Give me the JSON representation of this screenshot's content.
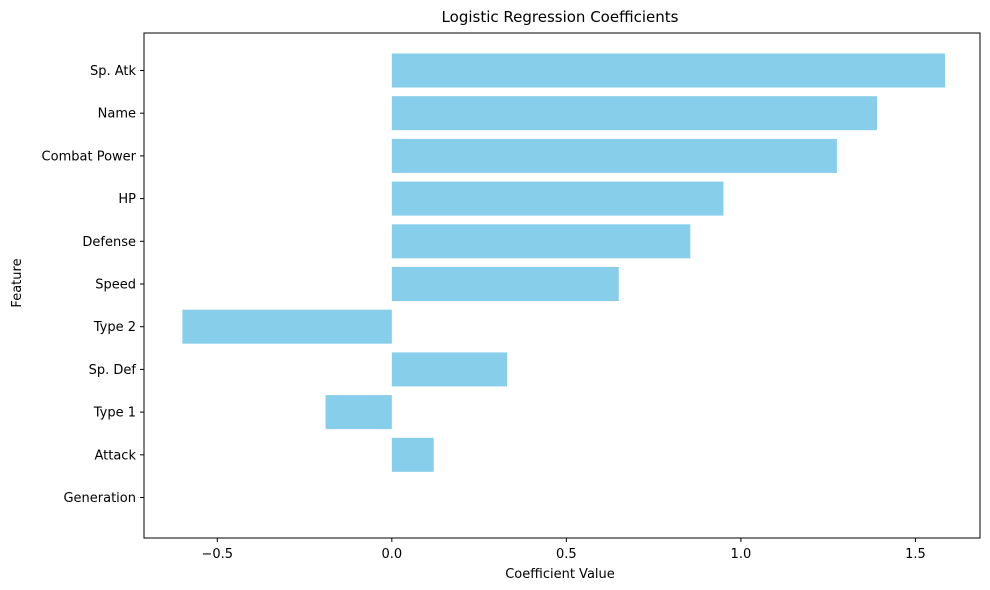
{
  "chart_data": {
    "type": "bar",
    "orientation": "horizontal",
    "title": "Logistic Regression Coefficients",
    "xlabel": "Coefficient Value",
    "ylabel": "Feature",
    "categories": [
      "Sp. Atk",
      "Name",
      "Combat Power",
      "HP",
      "Defense",
      "Speed",
      "Type 2",
      "Sp. Def",
      "Type 1",
      "Attack",
      "Generation"
    ],
    "values": [
      1.585,
      1.39,
      1.275,
      0.95,
      0.855,
      0.65,
      -0.6,
      0.33,
      -0.19,
      0.12,
      0.0
    ],
    "xlim": [
      -0.71,
      1.685
    ],
    "xticks": [
      -0.5,
      0.0,
      0.5,
      1.0,
      1.5
    ],
    "xtick_labels": [
      "−0.5",
      "0.0",
      "0.5",
      "1.0",
      "1.5"
    ],
    "bar_color": "#87CEEB",
    "grid": false,
    "legend": "none"
  }
}
